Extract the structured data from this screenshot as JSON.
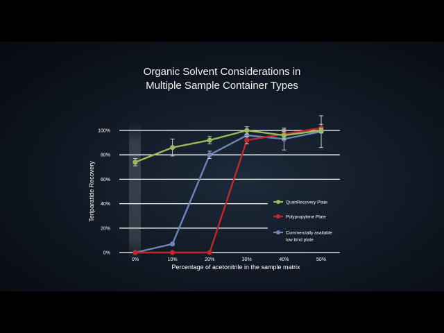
{
  "chart_data": {
    "type": "line",
    "title": "Organic Solvent Considerations in\nMultiple Sample Container Types",
    "xlabel": "Percentage of acetonitrile in the sample matrix",
    "ylabel": "Teriparatide Recovery",
    "categories": [
      "0%",
      "10%",
      "20%",
      "30%",
      "40%",
      "50%"
    ],
    "y_ticks": [
      "0%",
      "20%",
      "40%",
      "60%",
      "80%",
      "100%"
    ],
    "ylim": [
      0,
      100
    ],
    "grid": true,
    "legend_position": "right",
    "series": [
      {
        "name": "QuanRecovery Plate",
        "color": "#9bbb59",
        "values": [
          74,
          86,
          92,
          100,
          96,
          100
        ],
        "error": [
          3,
          7,
          3,
          3,
          3,
          2
        ]
      },
      {
        "name": "Polypropylene Plate",
        "color": "#c0282d",
        "values": [
          0,
          0,
          0,
          92,
          97,
          102
        ],
        "error": [
          0,
          0,
          0,
          3,
          4,
          3
        ]
      },
      {
        "name": "Commercially available\nlow bind plate",
        "color": "#6f86b8",
        "values": [
          0,
          7,
          80,
          96,
          93,
          99
        ],
        "error": [
          0,
          0,
          3,
          5,
          9,
          13
        ]
      }
    ]
  }
}
